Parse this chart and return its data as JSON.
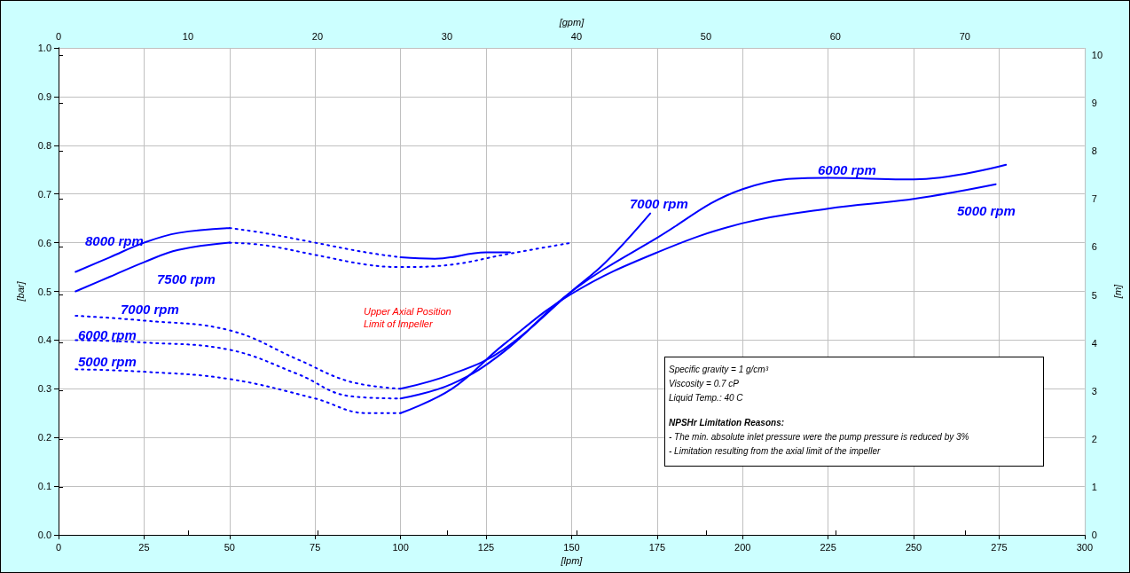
{
  "chart_data": {
    "type": "line",
    "xlabel": "[lpm]",
    "x2label": "[gpm]",
    "ylabel": "[bar]",
    "y2label": "[m]",
    "xlim": [
      0,
      300
    ],
    "xticks": [
      0,
      25,
      50,
      75,
      100,
      125,
      150,
      175,
      200,
      225,
      250,
      275,
      300
    ],
    "x2lim": [
      0,
      79.25
    ],
    "x2ticks": [
      0,
      10,
      20,
      30,
      40,
      50,
      60,
      70
    ],
    "ylim": [
      0,
      1
    ],
    "yticks": [
      {
        "value": 0,
        "label": "0.0"
      },
      0.1,
      0.2,
      0.3,
      0.4,
      0.5,
      0.6,
      0.7,
      0.8,
      0.9,
      {
        "value": 1,
        "label": "1.0"
      }
    ],
    "y2lim": [
      0,
      10.15
    ],
    "y2ticks": [
      0,
      1,
      2,
      3,
      4,
      5,
      6,
      7,
      8,
      9,
      10
    ],
    "grid": true,
    "series": [
      {
        "color": "#0000ff",
        "line_style": "solid",
        "x": [
          5,
          15,
          25,
          35,
          50
        ],
        "values": [
          0.54,
          0.57,
          0.6,
          0.62,
          0.63
        ]
      },
      {
        "color": "#0000ff",
        "line_style": "dotted",
        "x": [
          50,
          60,
          75,
          90,
          100
        ],
        "values": [
          0.63,
          0.62,
          0.6,
          0.58,
          0.57
        ]
      },
      {
        "color": "#0000ff",
        "line_style": "solid",
        "x": [
          100,
          110,
          125,
          132
        ],
        "values": [
          0.57,
          0.567,
          0.58,
          0.58
        ]
      },
      {
        "color": "#0000ff",
        "line_style": "solid",
        "x": [
          5,
          15,
          25,
          35,
          50
        ],
        "values": [
          0.5,
          0.53,
          0.56,
          0.585,
          0.6
        ]
      },
      {
        "color": "#0000ff",
        "line_style": "dotted",
        "x": [
          50,
          60,
          75,
          90,
          100,
          115,
          130,
          150
        ],
        "values": [
          0.6,
          0.595,
          0.575,
          0.555,
          0.55,
          0.555,
          0.575,
          0.6
        ]
      },
      {
        "color": "#0000ff",
        "line_style": "dotted",
        "x": [
          5,
          25,
          50,
          70,
          85,
          100
        ],
        "values": [
          0.45,
          0.44,
          0.42,
          0.36,
          0.315,
          0.3
        ]
      },
      {
        "color": "#0000ff",
        "line_style": "solid",
        "x": [
          100,
          115,
          130,
          150,
          160,
          173
        ],
        "values": [
          0.3,
          0.33,
          0.38,
          0.5,
          0.56,
          0.66
        ]
      },
      {
        "color": "#0000ff",
        "line_style": "dotted",
        "x": [
          5,
          25,
          50,
          70,
          85,
          100
        ],
        "values": [
          0.4,
          0.395,
          0.38,
          0.33,
          0.285,
          0.28
        ]
      },
      {
        "color": "#0000ff",
        "line_style": "solid",
        "x": [
          100,
          115,
          130,
          150,
          175,
          200,
          225,
          250,
          277
        ],
        "values": [
          0.28,
          0.31,
          0.375,
          0.5,
          0.61,
          0.71,
          0.733,
          0.73,
          0.76
        ]
      },
      {
        "color": "#0000ff",
        "line_style": "dotted",
        "x": [
          5,
          25,
          50,
          75,
          90,
          100
        ],
        "values": [
          0.34,
          0.335,
          0.32,
          0.28,
          0.25,
          0.25
        ]
      },
      {
        "color": "#0000ff",
        "line_style": "solid",
        "x": [
          100,
          115,
          130,
          150,
          175,
          200,
          225,
          250,
          274
        ],
        "values": [
          0.25,
          0.3,
          0.39,
          0.495,
          0.58,
          0.64,
          0.67,
          0.69,
          0.72
        ]
      }
    ],
    "annotations": [
      "8000 rpm",
      "7500 rpm",
      "7000 rpm",
      "6000 rpm",
      "5000 rpm",
      "7000 rpm",
      "6000 rpm",
      "5000 rpm",
      "Upper Axial Position\nLimit of Impeller",
      "Specific gravity = 1 g/cm³",
      "Viscosity = 0.7 cP",
      "Liquid Temp.: 40 C",
      "NPSHr Limitation Reasons:",
      "- The min. absolute inlet pressure were the pump pressure is reduced by 3%",
      "- Limitation resulting from the axial limit of the impeller"
    ]
  }
}
